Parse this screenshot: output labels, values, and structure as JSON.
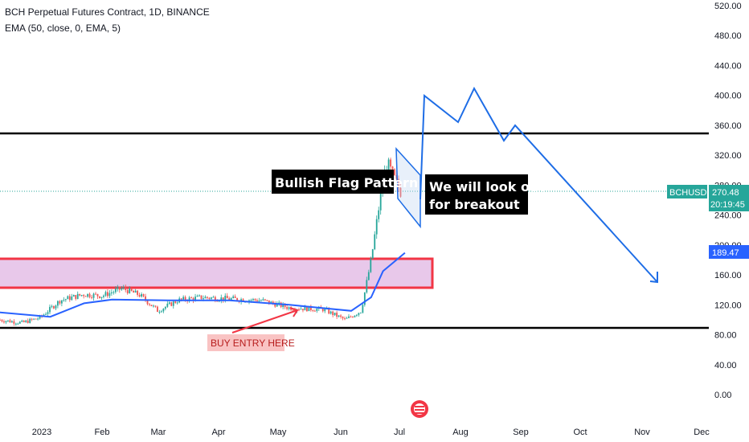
{
  "header": {
    "title": "BCH Perpetual Futures Contract, 1D, BINANCE",
    "indicator": "EMA (50, close, 0, EMA, 5)"
  },
  "price_axis": {
    "labels": [
      "520.00",
      "480.00",
      "440.00",
      "400.00",
      "360.00",
      "320.00",
      "280.00",
      "240.00",
      "200.00",
      "160.00",
      "120.00",
      "80.00",
      "40.00",
      "0.00"
    ]
  },
  "time_axis": {
    "labels": [
      "2023",
      "Feb",
      "Mar",
      "Apr",
      "May",
      "Jun",
      "Jul",
      "Aug",
      "Sep",
      "Oct",
      "Nov",
      "Dec"
    ]
  },
  "badges": {
    "symbol": "BCHUSD.P",
    "last_price": "270.48",
    "countdown": "20:19:45",
    "ema_value": "189.47"
  },
  "annotations": {
    "flag_label": "Bullish Flag Pattern",
    "breakout_line1": "We will look out",
    "breakout_line2": "for breakout",
    "buy_label": "BUY ENTRY HERE"
  },
  "colors": {
    "up": "#26a69a",
    "down": "#ef5350",
    "ema": "#2962ff",
    "projection": "#1e6de6",
    "zone_fill": "#e8c8ea",
    "zone_border": "#f23645",
    "last_price_badge": "#26a69a",
    "ema_badge": "#2962ff",
    "buy_label_bg": "#f9c3c3",
    "flag_fill": "#bcd3f2"
  },
  "chart_data": {
    "type": "candlestick",
    "title": "BCH Perpetual Futures Contract, 1D, BINANCE",
    "yrange": [
      0,
      520
    ],
    "x_labels": [
      "2023",
      "Feb",
      "Mar",
      "Apr",
      "May",
      "Jun",
      "Jul",
      "Aug",
      "Sep",
      "Oct",
      "Nov",
      "Dec"
    ],
    "last_price": 270.48,
    "ema_last": 189.47,
    "price_path": [
      {
        "date": "2022-12-20",
        "close": 100
      },
      {
        "date": "2023-01-01",
        "close": 96
      },
      {
        "date": "2023-01-10",
        "close": 103
      },
      {
        "date": "2023-01-20",
        "close": 126
      },
      {
        "date": "2023-02-01",
        "close": 134
      },
      {
        "date": "2023-02-10",
        "close": 132
      },
      {
        "date": "2023-02-20",
        "close": 142
      },
      {
        "date": "2023-03-01",
        "close": 133
      },
      {
        "date": "2023-03-10",
        "close": 112
      },
      {
        "date": "2023-03-20",
        "close": 126
      },
      {
        "date": "2023-04-01",
        "close": 130
      },
      {
        "date": "2023-04-15",
        "close": 128
      },
      {
        "date": "2023-05-01",
        "close": 126
      },
      {
        "date": "2023-05-15",
        "close": 116
      },
      {
        "date": "2023-06-01",
        "close": 114
      },
      {
        "date": "2023-06-12",
        "close": 100
      },
      {
        "date": "2023-06-20",
        "close": 112
      },
      {
        "date": "2023-06-25",
        "close": 180
      },
      {
        "date": "2023-06-30",
        "close": 270
      },
      {
        "date": "2023-07-03",
        "close": 310
      },
      {
        "date": "2023-07-10",
        "close": 270
      }
    ],
    "ema_path": [
      {
        "date": "2022-12-20",
        "value": 110
      },
      {
        "date": "2023-01-15",
        "value": 104
      },
      {
        "date": "2023-02-01",
        "value": 122
      },
      {
        "date": "2023-02-15",
        "value": 127
      },
      {
        "date": "2023-03-15",
        "value": 126
      },
      {
        "date": "2023-04-15",
        "value": 126
      },
      {
        "date": "2023-05-15",
        "value": 120
      },
      {
        "date": "2023-06-15",
        "value": 112
      },
      {
        "date": "2023-06-25",
        "value": 130
      },
      {
        "date": "2023-07-01",
        "value": 165
      },
      {
        "date": "2023-07-12",
        "value": 189.47
      }
    ],
    "horizontal_levels": [
      350,
      90
    ],
    "support_zone": {
      "from": 140,
      "to": 180
    },
    "flag_channel": {
      "start": "2023-06-30",
      "end": "2023-07-12",
      "upper": [
        326,
        274
      ],
      "lower": [
        256,
        205
      ]
    },
    "projection_path": [
      {
        "date": "2023-07-12",
        "value": 255
      },
      {
        "date": "2023-07-14",
        "value": 397
      },
      {
        "date": "2023-08-01",
        "value": 363
      },
      {
        "date": "2023-08-10",
        "value": 406
      },
      {
        "date": "2023-08-28",
        "value": 339
      },
      {
        "date": "2023-09-05",
        "value": 359
      },
      {
        "date": "2023-11-10",
        "value": 150
      }
    ]
  }
}
